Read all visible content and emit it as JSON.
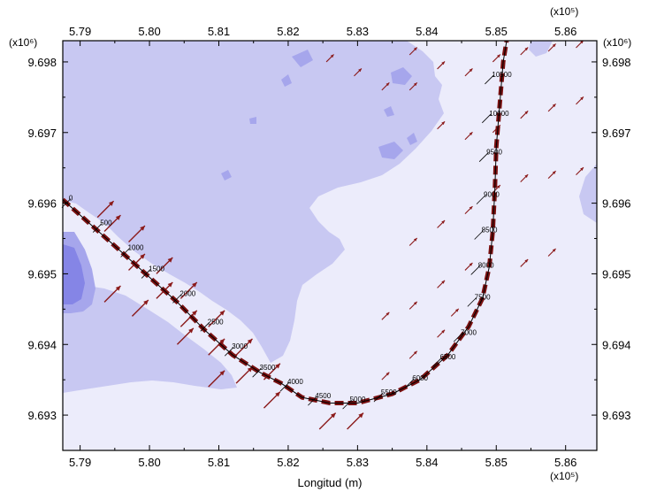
{
  "chart_data": {
    "type": "map-contour",
    "xlabel": "Longitud (m)",
    "ylabel": "",
    "x_multiplier_label": "(x10⁵)",
    "y_multiplier_label": "(x10⁶)",
    "xlim": [
      5.7875,
      5.8645
    ],
    "ylim": [
      9.6925,
      9.6983
    ],
    "x_ticks": [
      5.79,
      5.8,
      5.81,
      5.82,
      5.83,
      5.84,
      5.85,
      5.86
    ],
    "x_tick_labels": [
      "5.79",
      "5.80",
      "5.81",
      "5.82",
      "5.83",
      "5.84",
      "5.85",
      "5.86"
    ],
    "y_ticks": [
      9.693,
      9.694,
      9.695,
      9.696,
      9.697,
      9.698
    ],
    "y_tick_labels": [
      "9.693",
      "9.694",
      "9.695",
      "9.696",
      "9.697",
      "9.698"
    ],
    "colors": {
      "light": "#ececfb",
      "medium": "#c8c8f2",
      "dark": "#a6a6ec",
      "darkest": "#8585e6",
      "track_dash": "#7a1010",
      "arrow": "#8b1a1a"
    },
    "track": {
      "path": [
        [
          5.7875,
          9.69605
        ],
        [
          5.7955,
          9.69535
        ],
        [
          5.8,
          9.69495
        ],
        [
          5.804,
          9.6946
        ],
        [
          5.808,
          9.6942
        ],
        [
          5.812,
          9.69385
        ],
        [
          5.816,
          9.6936
        ],
        [
          5.819,
          9.69345
        ],
        [
          5.822,
          9.69325
        ],
        [
          5.826,
          9.69317
        ],
        [
          5.83,
          9.69317
        ],
        [
          5.835,
          9.6933
        ],
        [
          5.839,
          9.6935
        ],
        [
          5.843,
          9.69385
        ],
        [
          5.846,
          9.69425
        ],
        [
          5.848,
          9.69465
        ],
        [
          5.849,
          9.6951
        ],
        [
          5.8495,
          9.6956
        ],
        [
          5.8498,
          9.6962
        ],
        [
          5.85,
          9.6968
        ],
        [
          5.8505,
          9.6974
        ],
        [
          5.851,
          9.698
        ],
        [
          5.8515,
          9.6983
        ]
      ],
      "labels": [
        {
          "text": "0",
          "x": 5.788,
          "y": 9.696
        },
        {
          "text": "500",
          "x": 5.7925,
          "y": 9.69565
        },
        {
          "text": "1000",
          "x": 5.7965,
          "y": 9.6953
        },
        {
          "text": "1500",
          "x": 5.7995,
          "y": 9.695
        },
        {
          "text": "2000",
          "x": 5.804,
          "y": 9.69465
        },
        {
          "text": "2500",
          "x": 5.808,
          "y": 9.69425
        },
        {
          "text": "3000",
          "x": 5.8115,
          "y": 9.6939
        },
        {
          "text": "3500",
          "x": 5.8155,
          "y": 9.6936
        },
        {
          "text": "4000",
          "x": 5.8195,
          "y": 9.6934
        },
        {
          "text": "4500",
          "x": 5.8235,
          "y": 9.6932
        },
        {
          "text": "5000",
          "x": 5.8285,
          "y": 9.69315
        },
        {
          "text": "5500",
          "x": 5.833,
          "y": 9.69325
        },
        {
          "text": "6000",
          "x": 5.8375,
          "y": 9.69345
        },
        {
          "text": "6500",
          "x": 5.8415,
          "y": 9.69375
        },
        {
          "text": "7000",
          "x": 5.8445,
          "y": 9.6941
        },
        {
          "text": "7500",
          "x": 5.8465,
          "y": 9.6946
        },
        {
          "text": "8000",
          "x": 5.847,
          "y": 9.69505
        },
        {
          "text": "8500",
          "x": 5.8475,
          "y": 9.69555
        },
        {
          "text": "9000",
          "x": 5.8478,
          "y": 9.69605
        },
        {
          "text": "9500",
          "x": 5.8482,
          "y": 9.69665
        },
        {
          "text": "10000",
          "x": 5.8486,
          "y": 9.6972
        },
        {
          "text": "10500",
          "x": 5.849,
          "y": 9.69775
        }
      ]
    },
    "arrows": [
      {
        "x": 5.7925,
        "y": 9.6958,
        "u": 1,
        "v": 1,
        "size": "large"
      },
      {
        "x": 5.7935,
        "y": 9.6956,
        "u": 1,
        "v": 1,
        "size": "large"
      },
      {
        "x": 5.797,
        "y": 9.69545,
        "u": 1,
        "v": 1,
        "size": "large"
      },
      {
        "x": 5.797,
        "y": 9.69505,
        "u": 1,
        "v": 1,
        "size": "large"
      },
      {
        "x": 5.801,
        "y": 9.695,
        "u": 1,
        "v": 1,
        "size": "large"
      },
      {
        "x": 5.801,
        "y": 9.69465,
        "u": 1,
        "v": 1,
        "size": "large"
      },
      {
        "x": 5.8045,
        "y": 9.69465,
        "u": 1,
        "v": 1,
        "size": "large"
      },
      {
        "x": 5.8045,
        "y": 9.69425,
        "u": 1,
        "v": 1,
        "size": "large"
      },
      {
        "x": 5.8085,
        "y": 9.69425,
        "u": 1,
        "v": 1,
        "size": "large"
      },
      {
        "x": 5.8085,
        "y": 9.69385,
        "u": 1,
        "v": 1,
        "size": "large"
      },
      {
        "x": 5.8125,
        "y": 9.69385,
        "u": 1,
        "v": 1,
        "size": "large"
      },
      {
        "x": 5.8125,
        "y": 9.69345,
        "u": 1,
        "v": 1,
        "size": "large"
      },
      {
        "x": 5.8165,
        "y": 9.6935,
        "u": 1,
        "v": 1,
        "size": "large"
      },
      {
        "x": 5.8165,
        "y": 9.6931,
        "u": 1,
        "v": 1,
        "size": "large"
      },
      {
        "x": 5.8245,
        "y": 9.6928,
        "u": 1,
        "v": 1,
        "size": "large"
      },
      {
        "x": 5.8285,
        "y": 9.6928,
        "u": 1,
        "v": 1,
        "size": "large"
      },
      {
        "x": 5.7935,
        "y": 9.6946,
        "u": 1,
        "v": 1,
        "size": "large"
      },
      {
        "x": 5.7975,
        "y": 9.6944,
        "u": 1,
        "v": 1,
        "size": "large"
      },
      {
        "x": 5.804,
        "y": 9.694,
        "u": 1,
        "v": 1,
        "size": "large"
      },
      {
        "x": 5.8085,
        "y": 9.6934,
        "u": 1,
        "v": 1,
        "size": "large"
      },
      {
        "x": 5.8335,
        "y": 9.6935,
        "u": 1,
        "v": 1,
        "size": "small"
      },
      {
        "x": 5.8375,
        "y": 9.6938,
        "u": 1,
        "v": 1,
        "size": "small"
      },
      {
        "x": 5.8415,
        "y": 9.6941,
        "u": 1,
        "v": 1,
        "size": "small"
      },
      {
        "x": 5.8435,
        "y": 9.6944,
        "u": 1,
        "v": 1,
        "size": "small"
      },
      {
        "x": 5.8335,
        "y": 9.69435,
        "u": 1,
        "v": 1,
        "size": "small"
      },
      {
        "x": 5.8375,
        "y": 9.6945,
        "u": 1,
        "v": 1,
        "size": "small"
      },
      {
        "x": 5.8415,
        "y": 9.6948,
        "u": 1,
        "v": 1,
        "size": "small"
      },
      {
        "x": 5.8455,
        "y": 9.69505,
        "u": 1,
        "v": 1,
        "size": "small"
      },
      {
        "x": 5.8375,
        "y": 9.6954,
        "u": 1,
        "v": 1,
        "size": "small"
      },
      {
        "x": 5.8415,
        "y": 9.69565,
        "u": 1,
        "v": 1,
        "size": "small"
      },
      {
        "x": 5.8455,
        "y": 9.69585,
        "u": 1,
        "v": 1,
        "size": "small"
      },
      {
        "x": 5.8495,
        "y": 9.69615,
        "u": 1,
        "v": 1,
        "size": "small"
      },
      {
        "x": 5.8535,
        "y": 9.6963,
        "u": 1,
        "v": 1,
        "size": "small"
      },
      {
        "x": 5.8575,
        "y": 9.69635,
        "u": 1,
        "v": 1,
        "size": "small"
      },
      {
        "x": 5.8615,
        "y": 9.6964,
        "u": 1,
        "v": 1,
        "size": "small"
      },
      {
        "x": 5.8535,
        "y": 9.6951,
        "u": 1,
        "v": 1,
        "size": "small"
      },
      {
        "x": 5.8575,
        "y": 9.69525,
        "u": 1,
        "v": 1,
        "size": "small"
      },
      {
        "x": 5.8535,
        "y": 9.6972,
        "u": 1,
        "v": 1,
        "size": "small"
      },
      {
        "x": 5.8575,
        "y": 9.6973,
        "u": 1,
        "v": 1,
        "size": "small"
      },
      {
        "x": 5.8615,
        "y": 9.6974,
        "u": 1,
        "v": 1,
        "size": "small"
      },
      {
        "x": 5.8535,
        "y": 9.6981,
        "u": 1,
        "v": 1,
        "size": "small"
      },
      {
        "x": 5.8575,
        "y": 9.69815,
        "u": 1,
        "v": 1,
        "size": "small"
      },
      {
        "x": 5.8615,
        "y": 9.6982,
        "u": 1,
        "v": 1,
        "size": "small"
      },
      {
        "x": 5.8455,
        "y": 9.6969,
        "u": 1,
        "v": 1,
        "size": "small"
      },
      {
        "x": 5.8455,
        "y": 9.6978,
        "u": 1,
        "v": 1,
        "size": "small"
      },
      {
        "x": 5.8415,
        "y": 9.69705,
        "u": 1,
        "v": 1,
        "size": "small"
      },
      {
        "x": 5.8415,
        "y": 9.6979,
        "u": 1,
        "v": 1,
        "size": "small"
      },
      {
        "x": 5.8375,
        "y": 9.6976,
        "u": 1,
        "v": 1,
        "size": "small"
      },
      {
        "x": 5.8375,
        "y": 9.6981,
        "u": 1,
        "v": 1,
        "size": "small"
      },
      {
        "x": 5.8495,
        "y": 9.697,
        "u": 1,
        "v": 1,
        "size": "small"
      },
      {
        "x": 5.8495,
        "y": 9.698,
        "u": 1,
        "v": 1,
        "size": "small"
      },
      {
        "x": 5.8295,
        "y": 9.6978,
        "u": 1,
        "v": 1,
        "size": "small"
      },
      {
        "x": 5.8335,
        "y": 9.6976,
        "u": 1,
        "v": 1,
        "size": "small"
      },
      {
        "x": 5.8255,
        "y": 9.698,
        "u": 1,
        "v": 1,
        "size": "small"
      }
    ]
  }
}
